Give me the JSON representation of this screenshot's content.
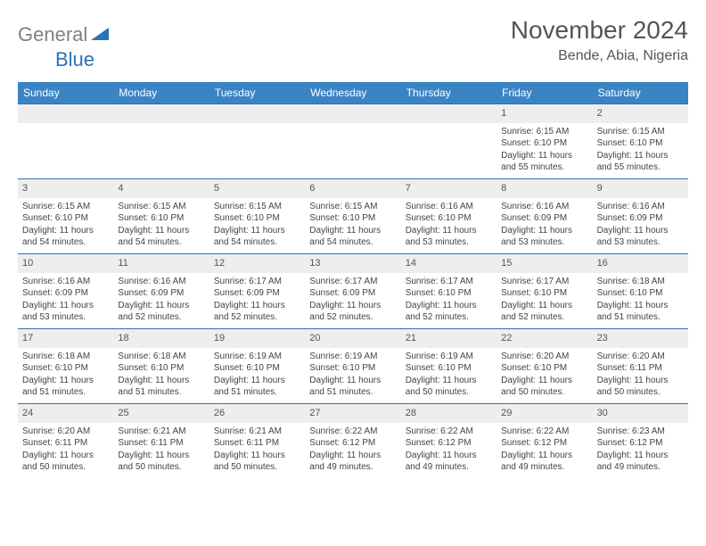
{
  "brand": {
    "part1": "General",
    "part2": "Blue"
  },
  "title": "November 2024",
  "location": "Bende, Abia, Nigeria",
  "colors": {
    "header_bg": "#3b84c4",
    "border": "#2a73b8",
    "daybar": "#eeeeee",
    "text": "#444444",
    "title_text": "#555555",
    "logo_gray": "#808080",
    "logo_blue": "#2a73b8"
  },
  "weekdays": [
    "Sunday",
    "Monday",
    "Tuesday",
    "Wednesday",
    "Thursday",
    "Friday",
    "Saturday"
  ],
  "leading_blanks": 5,
  "days": [
    {
      "n": "1",
      "sunrise": "Sunrise: 6:15 AM",
      "sunset": "Sunset: 6:10 PM",
      "day": "Daylight: 11 hours and 55 minutes."
    },
    {
      "n": "2",
      "sunrise": "Sunrise: 6:15 AM",
      "sunset": "Sunset: 6:10 PM",
      "day": "Daylight: 11 hours and 55 minutes."
    },
    {
      "n": "3",
      "sunrise": "Sunrise: 6:15 AM",
      "sunset": "Sunset: 6:10 PM",
      "day": "Daylight: 11 hours and 54 minutes."
    },
    {
      "n": "4",
      "sunrise": "Sunrise: 6:15 AM",
      "sunset": "Sunset: 6:10 PM",
      "day": "Daylight: 11 hours and 54 minutes."
    },
    {
      "n": "5",
      "sunrise": "Sunrise: 6:15 AM",
      "sunset": "Sunset: 6:10 PM",
      "day": "Daylight: 11 hours and 54 minutes."
    },
    {
      "n": "6",
      "sunrise": "Sunrise: 6:15 AM",
      "sunset": "Sunset: 6:10 PM",
      "day": "Daylight: 11 hours and 54 minutes."
    },
    {
      "n": "7",
      "sunrise": "Sunrise: 6:16 AM",
      "sunset": "Sunset: 6:10 PM",
      "day": "Daylight: 11 hours and 53 minutes."
    },
    {
      "n": "8",
      "sunrise": "Sunrise: 6:16 AM",
      "sunset": "Sunset: 6:09 PM",
      "day": "Daylight: 11 hours and 53 minutes."
    },
    {
      "n": "9",
      "sunrise": "Sunrise: 6:16 AM",
      "sunset": "Sunset: 6:09 PM",
      "day": "Daylight: 11 hours and 53 minutes."
    },
    {
      "n": "10",
      "sunrise": "Sunrise: 6:16 AM",
      "sunset": "Sunset: 6:09 PM",
      "day": "Daylight: 11 hours and 53 minutes."
    },
    {
      "n": "11",
      "sunrise": "Sunrise: 6:16 AM",
      "sunset": "Sunset: 6:09 PM",
      "day": "Daylight: 11 hours and 52 minutes."
    },
    {
      "n": "12",
      "sunrise": "Sunrise: 6:17 AM",
      "sunset": "Sunset: 6:09 PM",
      "day": "Daylight: 11 hours and 52 minutes."
    },
    {
      "n": "13",
      "sunrise": "Sunrise: 6:17 AM",
      "sunset": "Sunset: 6:09 PM",
      "day": "Daylight: 11 hours and 52 minutes."
    },
    {
      "n": "14",
      "sunrise": "Sunrise: 6:17 AM",
      "sunset": "Sunset: 6:10 PM",
      "day": "Daylight: 11 hours and 52 minutes."
    },
    {
      "n": "15",
      "sunrise": "Sunrise: 6:17 AM",
      "sunset": "Sunset: 6:10 PM",
      "day": "Daylight: 11 hours and 52 minutes."
    },
    {
      "n": "16",
      "sunrise": "Sunrise: 6:18 AM",
      "sunset": "Sunset: 6:10 PM",
      "day": "Daylight: 11 hours and 51 minutes."
    },
    {
      "n": "17",
      "sunrise": "Sunrise: 6:18 AM",
      "sunset": "Sunset: 6:10 PM",
      "day": "Daylight: 11 hours and 51 minutes."
    },
    {
      "n": "18",
      "sunrise": "Sunrise: 6:18 AM",
      "sunset": "Sunset: 6:10 PM",
      "day": "Daylight: 11 hours and 51 minutes."
    },
    {
      "n": "19",
      "sunrise": "Sunrise: 6:19 AM",
      "sunset": "Sunset: 6:10 PM",
      "day": "Daylight: 11 hours and 51 minutes."
    },
    {
      "n": "20",
      "sunrise": "Sunrise: 6:19 AM",
      "sunset": "Sunset: 6:10 PM",
      "day": "Daylight: 11 hours and 51 minutes."
    },
    {
      "n": "21",
      "sunrise": "Sunrise: 6:19 AM",
      "sunset": "Sunset: 6:10 PM",
      "day": "Daylight: 11 hours and 50 minutes."
    },
    {
      "n": "22",
      "sunrise": "Sunrise: 6:20 AM",
      "sunset": "Sunset: 6:10 PM",
      "day": "Daylight: 11 hours and 50 minutes."
    },
    {
      "n": "23",
      "sunrise": "Sunrise: 6:20 AM",
      "sunset": "Sunset: 6:11 PM",
      "day": "Daylight: 11 hours and 50 minutes."
    },
    {
      "n": "24",
      "sunrise": "Sunrise: 6:20 AM",
      "sunset": "Sunset: 6:11 PM",
      "day": "Daylight: 11 hours and 50 minutes."
    },
    {
      "n": "25",
      "sunrise": "Sunrise: 6:21 AM",
      "sunset": "Sunset: 6:11 PM",
      "day": "Daylight: 11 hours and 50 minutes."
    },
    {
      "n": "26",
      "sunrise": "Sunrise: 6:21 AM",
      "sunset": "Sunset: 6:11 PM",
      "day": "Daylight: 11 hours and 50 minutes."
    },
    {
      "n": "27",
      "sunrise": "Sunrise: 6:22 AM",
      "sunset": "Sunset: 6:12 PM",
      "day": "Daylight: 11 hours and 49 minutes."
    },
    {
      "n": "28",
      "sunrise": "Sunrise: 6:22 AM",
      "sunset": "Sunset: 6:12 PM",
      "day": "Daylight: 11 hours and 49 minutes."
    },
    {
      "n": "29",
      "sunrise": "Sunrise: 6:22 AM",
      "sunset": "Sunset: 6:12 PM",
      "day": "Daylight: 11 hours and 49 minutes."
    },
    {
      "n": "30",
      "sunrise": "Sunrise: 6:23 AM",
      "sunset": "Sunset: 6:12 PM",
      "day": "Daylight: 11 hours and 49 minutes."
    }
  ]
}
